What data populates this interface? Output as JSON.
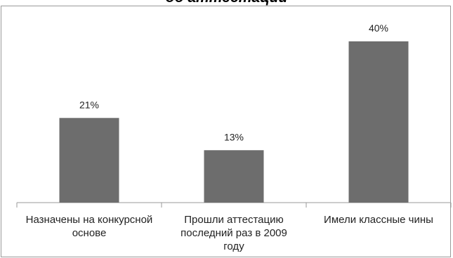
{
  "chart_data": {
    "type": "bar",
    "title": "об аттестации",
    "categories": [
      [
        "Назначены на конкурсной",
        "основе"
      ],
      [
        "Прошли аттестацию",
        "последний раз в 2009",
        "году"
      ],
      [
        "Имели классные чины"
      ]
    ],
    "values": [
      21,
      13,
      40
    ],
    "value_labels": [
      "21%",
      "13%",
      "40%"
    ],
    "unit": "%",
    "ylim": [
      0,
      45
    ],
    "grid": false,
    "legend": "none",
    "colors": {
      "bar": "#6d6d6d",
      "axis": "#9a9a9a",
      "frame": "#9a9a9a"
    }
  }
}
